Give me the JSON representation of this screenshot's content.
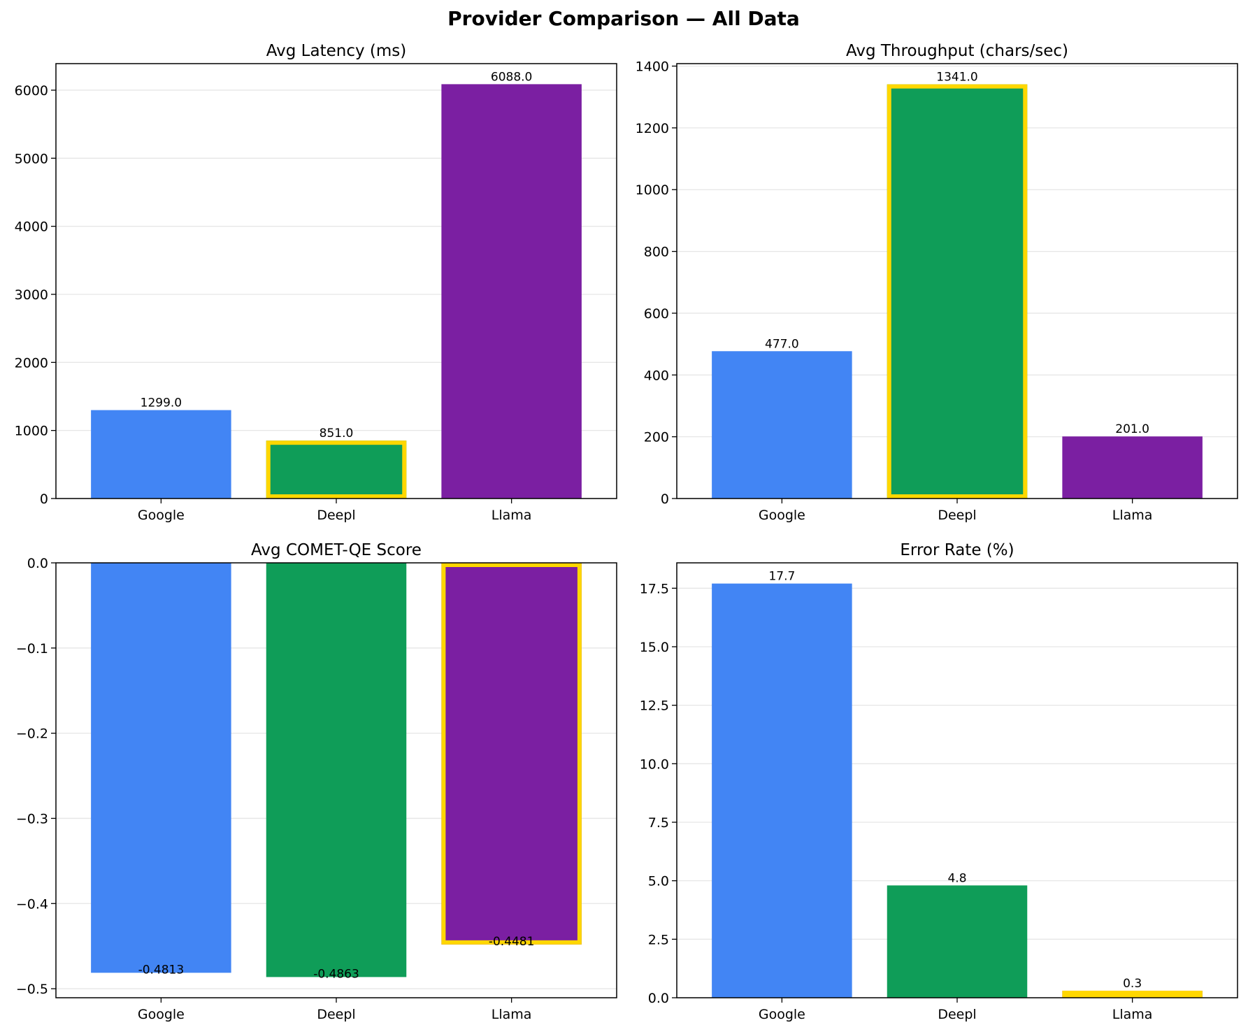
{
  "figure_title": "Provider Comparison — All Data",
  "colors": {
    "Google": "#4285f4",
    "Deepl": "#0f9d58",
    "Llama": "#7b1fa2",
    "highlight": "#ffd700",
    "grid": "#e6e6e6"
  },
  "chart_data": [
    {
      "type": "bar",
      "title": "Avg Latency (ms)",
      "categories": [
        "Google",
        "Deepl",
        "Llama"
      ],
      "values": [
        1299.0,
        851.0,
        6088.0
      ],
      "value_labels": [
        "1299.0",
        "851.0",
        "6088.0"
      ],
      "highlighted": "Deepl",
      "ylim": [
        0,
        6390
      ],
      "yticks": [
        0,
        1000,
        2000,
        3000,
        4000,
        5000,
        6000
      ],
      "ytick_labels": [
        "0",
        "1000",
        "2000",
        "3000",
        "4000",
        "5000",
        "6000"
      ],
      "grid": true
    },
    {
      "type": "bar",
      "title": "Avg Throughput (chars/sec)",
      "categories": [
        "Google",
        "Deepl",
        "Llama"
      ],
      "values": [
        477.0,
        1341.0,
        201.0
      ],
      "value_labels": [
        "477.0",
        "1341.0",
        "201.0"
      ],
      "highlighted": "Deepl",
      "ylim": [
        0,
        1408
      ],
      "yticks": [
        0,
        200,
        400,
        600,
        800,
        1000,
        1200,
        1400
      ],
      "ytick_labels": [
        "0",
        "200",
        "400",
        "600",
        "800",
        "1000",
        "1200",
        "1400"
      ],
      "grid": true
    },
    {
      "type": "bar",
      "title": "Avg COMET-QE Score",
      "categories": [
        "Google",
        "Deepl",
        "Llama"
      ],
      "values": [
        -0.4813,
        -0.4863,
        -0.4481
      ],
      "value_labels": [
        "-0.4813",
        "-0.4863",
        "-0.4481"
      ],
      "highlighted": "Llama",
      "ylim": [
        -0.5106,
        0
      ],
      "yticks": [
        0.0,
        -0.1,
        -0.2,
        -0.3,
        -0.4,
        -0.5
      ],
      "ytick_labels": [
        "0.0",
        "−0.1",
        "−0.2",
        "−0.3",
        "−0.4",
        "−0.5"
      ],
      "grid": true
    },
    {
      "type": "bar",
      "title": "Error Rate (%)",
      "categories": [
        "Google",
        "Deepl",
        "Llama"
      ],
      "values": [
        17.7,
        4.8,
        0.3
      ],
      "value_labels": [
        "17.7",
        "4.8",
        "0.3"
      ],
      "highlighted": "Llama",
      "ylim": [
        0,
        18.585
      ],
      "yticks": [
        0.0,
        2.5,
        5.0,
        7.5,
        10.0,
        12.5,
        15.0,
        17.5
      ],
      "ytick_labels": [
        "0.0",
        "2.5",
        "5.0",
        "7.5",
        "10.0",
        "12.5",
        "15.0",
        "17.5"
      ],
      "grid": true
    }
  ]
}
